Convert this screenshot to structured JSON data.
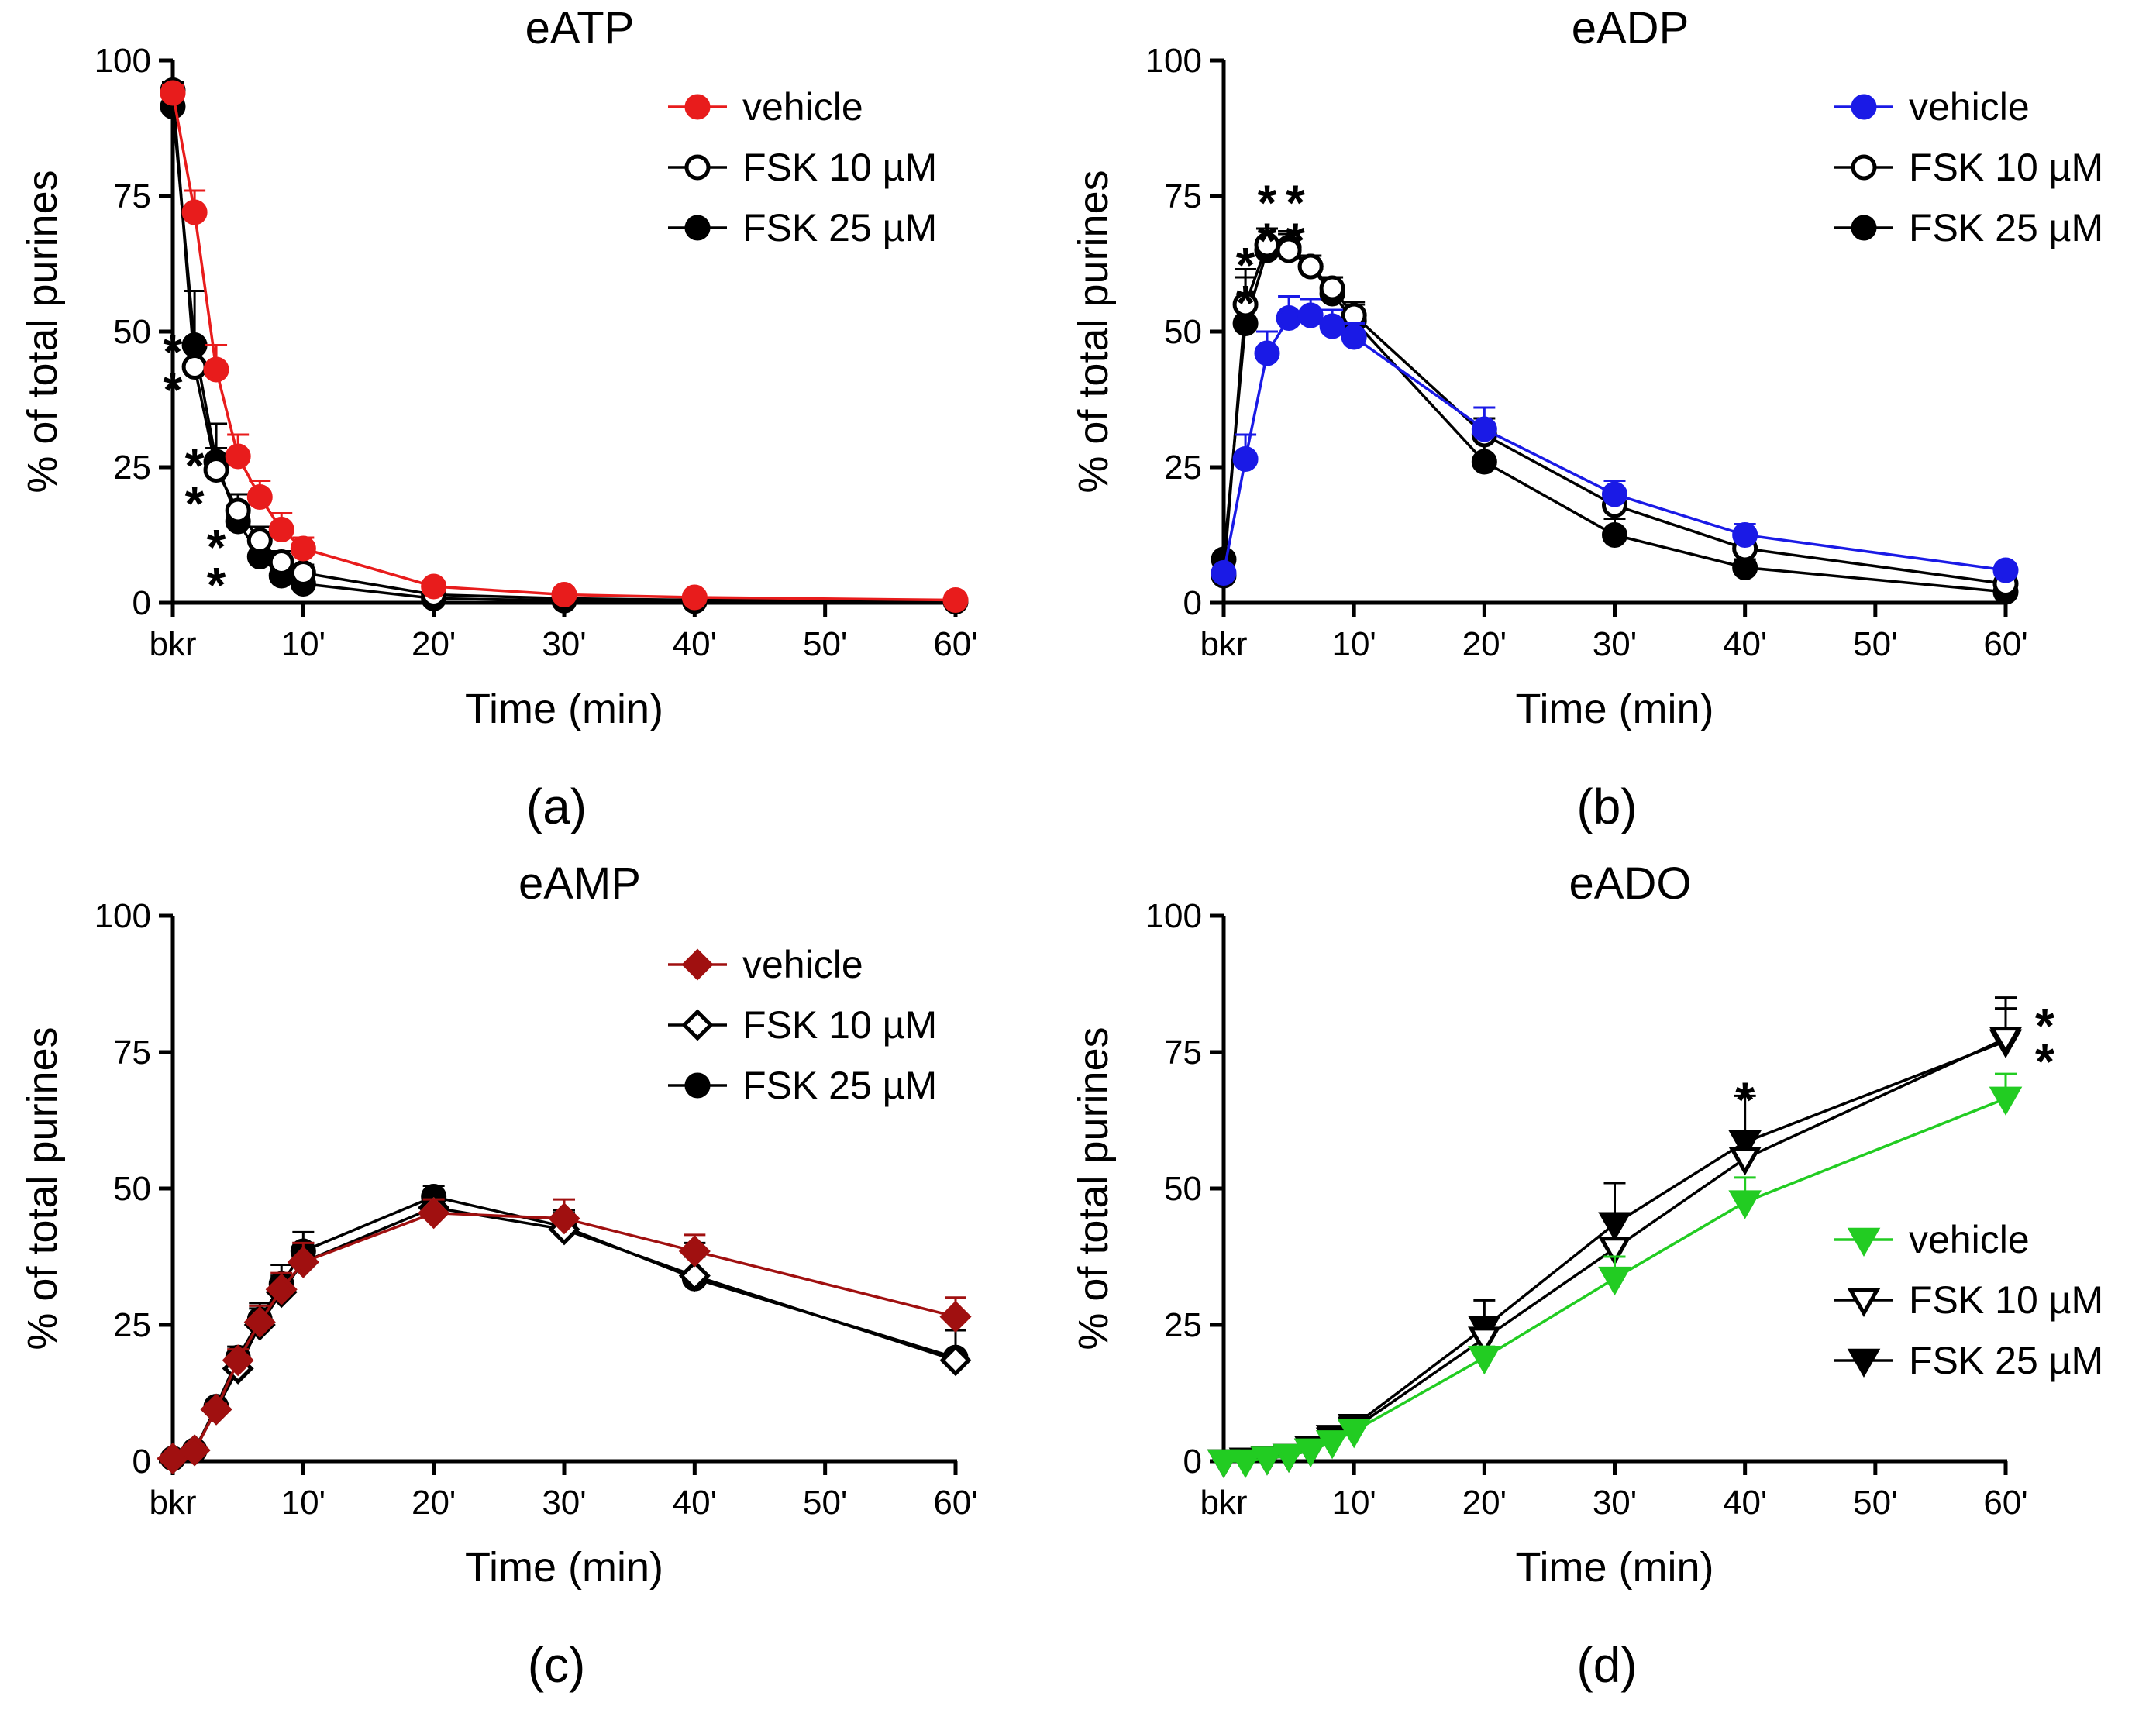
{
  "figure": {
    "x_tick_labels": [
      "bkr",
      "10'",
      "20'",
      "30'",
      "40'",
      "50'",
      "60'"
    ],
    "y_ticks": [
      0,
      25,
      50,
      75,
      100
    ],
    "ylabel": "% of total purines",
    "xlabel": "Time (min)"
  },
  "chart_data": [
    {
      "type": "line",
      "title": "eATP",
      "panel_label": "(a)",
      "xlabel": "Time (min)",
      "ylabel": "% of total purines",
      "xlim": [
        0,
        60
      ],
      "ylim": [
        0,
        100
      ],
      "legend_position": "top-right",
      "series": [
        {
          "name": "vehicle",
          "color": "#e81c1c",
          "marker": "circle-filled",
          "x": [
            0,
            1.67,
            3.33,
            5,
            6.67,
            8.33,
            10,
            20,
            30,
            40,
            60
          ],
          "y": [
            94,
            72,
            43,
            27,
            19.5,
            13.5,
            10,
            3,
            1.5,
            1,
            0.5
          ],
          "err": [
            1.5,
            4,
            4.5,
            4,
            3,
            3,
            2,
            1,
            0.5,
            0.5,
            0.5
          ]
        },
        {
          "name": "FSK 10 µM",
          "color": "#000000",
          "marker": "circle-open",
          "x": [
            0,
            1.67,
            3.33,
            5,
            6.67,
            8.33,
            10,
            20,
            30,
            40,
            60
          ],
          "y": [
            94.5,
            43.5,
            24.5,
            17,
            11.5,
            7.5,
            5.5,
            1.5,
            0.8,
            0.5,
            0.3
          ],
          "err": [
            1.5,
            5,
            4,
            3,
            2.5,
            2,
            1.5,
            0.5,
            0.3,
            0.3,
            0.2
          ]
        },
        {
          "name": "FSK 25 µM",
          "color": "#000000",
          "marker": "circle-filled",
          "x": [
            0,
            1.67,
            3.33,
            5,
            6.67,
            8.33,
            10,
            20,
            30,
            40,
            60
          ],
          "y": [
            91.5,
            47.5,
            26,
            15,
            8.5,
            5,
            3.5,
            0.8,
            0.4,
            0.3,
            0.2
          ],
          "err": [
            2,
            10,
            7,
            5,
            4,
            3,
            2,
            0.5,
            0.3,
            0.2,
            0.1
          ]
        }
      ],
      "annotations": [
        {
          "text": "*",
          "x": 0,
          "y": 48
        },
        {
          "text": "*",
          "x": 0,
          "y": 41
        },
        {
          "text": "*",
          "x": 1.67,
          "y": 27
        },
        {
          "text": "*",
          "x": 1.67,
          "y": 20
        },
        {
          "text": "*",
          "x": 3.33,
          "y": 12
        },
        {
          "text": "*",
          "x": 3.33,
          "y": 5
        }
      ]
    },
    {
      "type": "line",
      "title": "eADP",
      "panel_label": "(b)",
      "xlabel": "Time (min)",
      "ylabel": "% of total purines",
      "xlim": [
        0,
        60
      ],
      "ylim": [
        0,
        100
      ],
      "legend_position": "top-right",
      "series": [
        {
          "name": "vehicle",
          "color": "#1a1ae6",
          "marker": "circle-filled",
          "x": [
            0,
            1.67,
            3.33,
            5,
            6.67,
            8.33,
            10,
            20,
            30,
            40,
            60
          ],
          "y": [
            5.5,
            26.5,
            46,
            52.5,
            53,
            51,
            49,
            32,
            20,
            12.5,
            6
          ],
          "err": [
            1,
            4.5,
            4,
            4,
            3,
            3,
            2.5,
            4,
            2.5,
            2,
            1
          ]
        },
        {
          "name": "FSK 10 µM",
          "color": "#000000",
          "marker": "circle-open",
          "x": [
            0,
            1.67,
            3.33,
            5,
            6.67,
            8.33,
            10,
            20,
            30,
            40,
            60
          ],
          "y": [
            5,
            55,
            66,
            65,
            62,
            58,
            53,
            31,
            18,
            10,
            3.5
          ],
          "err": [
            1,
            5,
            3,
            3,
            2,
            2,
            2.5,
            3,
            2,
            2,
            1
          ]
        },
        {
          "name": "FSK 25 µM",
          "color": "#000000",
          "marker": "circle-filled",
          "x": [
            0,
            1.67,
            3.33,
            5,
            6.67,
            8.33,
            10,
            20,
            30,
            40,
            60
          ],
          "y": [
            8,
            51.5,
            65,
            65.5,
            62,
            57,
            52,
            26,
            12.5,
            6.5,
            2
          ],
          "err": [
            1,
            10,
            4,
            3,
            2,
            2,
            3,
            4,
            3,
            1.5,
            1
          ]
        }
      ],
      "annotations": [
        {
          "text": "*",
          "x": 1.67,
          "y": 64
        },
        {
          "text": "*",
          "x": 1.67,
          "y": 57
        },
        {
          "text": "*",
          "x": 3.33,
          "y": 75.5
        },
        {
          "text": "*",
          "x": 3.33,
          "y": 68.5
        },
        {
          "text": "*",
          "x": 5.5,
          "y": 75.5
        },
        {
          "text": "*",
          "x": 5.5,
          "y": 68.5
        }
      ]
    },
    {
      "type": "line",
      "title": "eAMP",
      "panel_label": "(c)",
      "xlabel": "Time (min)",
      "ylabel": "% of total purines",
      "xlim": [
        0,
        60
      ],
      "ylim": [
        0,
        100
      ],
      "legend_position": "top-right",
      "series": [
        {
          "name": "vehicle",
          "color": "#a01010",
          "marker": "diamond-filled",
          "x": [
            0,
            1.67,
            3.33,
            5,
            6.67,
            8.33,
            10,
            20,
            30,
            40,
            60
          ],
          "y": [
            0.5,
            2,
            9.5,
            18.5,
            25.5,
            31.5,
            36.5,
            45.5,
            44.5,
            38.5,
            26.5
          ],
          "err": [
            0.3,
            0.5,
            1,
            2,
            3,
            3,
            3.5,
            2.5,
            3.5,
            3,
            3.5
          ]
        },
        {
          "name": "FSK 10 µM",
          "color": "#000000",
          "marker": "diamond-open",
          "x": [
            0,
            1.67,
            3.33,
            5,
            6.67,
            8.33,
            10,
            20,
            30,
            40,
            60
          ],
          "y": [
            0.5,
            2,
            9.5,
            17,
            25,
            31,
            36.5,
            46.5,
            42.5,
            34,
            18.5
          ],
          "err": [
            0.3,
            0.5,
            1,
            2,
            3,
            3,
            3.5,
            2.5,
            3,
            6,
            5.5
          ]
        },
        {
          "name": "FSK 25 µM",
          "color": "#000000",
          "marker": "circle-filled",
          "x": [
            0,
            1.67,
            3.33,
            5,
            6.67,
            8.33,
            10,
            20,
            30,
            40,
            60
          ],
          "y": [
            0.5,
            2,
            10,
            19,
            26,
            32.5,
            38.5,
            48.5,
            43,
            33.5,
            19
          ],
          "err": [
            0.3,
            0.5,
            1,
            2,
            3,
            3.5,
            3.5,
            2,
            3,
            4,
            5
          ]
        }
      ],
      "annotations": []
    },
    {
      "type": "line",
      "title": "eADO",
      "panel_label": "(d)",
      "xlabel": "Time (min)",
      "ylabel": "% of total purines",
      "xlim": [
        0,
        60
      ],
      "ylim": [
        0,
        100
      ],
      "legend_position": "bottom-right",
      "series": [
        {
          "name": "vehicle",
          "color": "#22cc22",
          "marker": "triangle-down-filled",
          "x": [
            0,
            1.67,
            3.33,
            5,
            6.67,
            8.33,
            10,
            20,
            30,
            40,
            60
          ],
          "y": [
            0,
            0,
            0.5,
            1,
            2,
            3.5,
            5.5,
            19,
            33.5,
            47.5,
            66.5
          ],
          "err": [
            0.2,
            0.2,
            0.3,
            0.5,
            0.5,
            1,
            1,
            2,
            4,
            4.5,
            4.5
          ]
        },
        {
          "name": "FSK 10 µM",
          "color": "#000000",
          "marker": "triangle-down-open",
          "x": [
            0,
            1.67,
            3.33,
            5,
            6.67,
            8.33,
            10,
            20,
            30,
            40,
            60
          ],
          "y": [
            0,
            0.3,
            0.5,
            1,
            2,
            4,
            6,
            22.5,
            39,
            55.5,
            77.5
          ],
          "err": [
            0.2,
            0.2,
            0.3,
            0.5,
            0.5,
            1,
            1,
            3,
            5,
            5,
            5.5
          ]
        },
        {
          "name": "FSK 25 µM",
          "color": "#000000",
          "marker": "triangle-down-filled",
          "x": [
            0,
            1.67,
            3.33,
            5,
            6.67,
            8.33,
            10,
            20,
            30,
            40,
            60
          ],
          "y": [
            0,
            0.3,
            0.5,
            1,
            2.5,
            4.5,
            6.5,
            24.5,
            43.5,
            58.5,
            77
          ],
          "err": [
            0.2,
            0.2,
            0.3,
            0.5,
            0.5,
            1,
            1,
            5,
            7.5,
            8.5,
            8
          ]
        }
      ],
      "annotations": [
        {
          "text": "*",
          "x": 40,
          "y": 68
        },
        {
          "text": "*",
          "x": 63,
          "y": 81.5
        },
        {
          "text": "*",
          "x": 63,
          "y": 75
        }
      ]
    }
  ]
}
